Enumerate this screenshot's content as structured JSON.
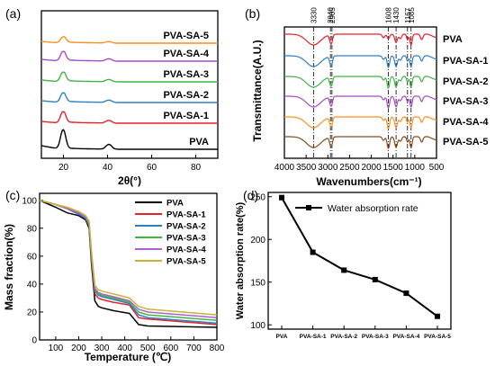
{
  "colors": {
    "PVA": "#000000",
    "PVA-SA-1": "#e8202a",
    "PVA-SA-2": "#2f7fc3",
    "PVA-SA-3": "#3fb545",
    "PVA-SA-4": "#a64bc6",
    "PVA-SA-5": "#ff8f1f",
    "ftir_PVA": "#e8202a",
    "ftir_PVA-SA-1": "#2f7fc3",
    "ftir_PVA-SA-2": "#3fb545",
    "ftir_PVA-SA-3": "#a64bc6",
    "ftir_PVA-SA-4": "#ff8f1f",
    "ftir_PVA-SA-5": "#8b4a1f",
    "tga_PVA-SA-4": "#b05fd0",
    "tga_PVA-SA-5": "#c8b332",
    "water": "#000000"
  },
  "chart_data": [
    {
      "panel": "(a)",
      "type": "line",
      "xlabel": "2θ(°)",
      "ylabel": "",
      "xlim": [
        10,
        90
      ],
      "x_ticks": [
        20,
        40,
        60,
        80
      ],
      "series": [
        {
          "name": "PVA",
          "peak_x": 19.8
        },
        {
          "name": "PVA-SA-1",
          "peak_x": 19.8
        },
        {
          "name": "PVA-SA-2",
          "peak_x": 19.8
        },
        {
          "name": "PVA-SA-3",
          "peak_x": 19.8
        },
        {
          "name": "PVA-SA-4",
          "peak_x": 19.8
        },
        {
          "name": "PVA-SA-5",
          "peak_x": 19.8
        }
      ]
    },
    {
      "panel": "(b)",
      "type": "line",
      "xlabel": "Wavenumbers(cm⁻¹)",
      "ylabel": "Transmittance(A.U.)",
      "xlim": [
        4000,
        500
      ],
      "x_ticks": [
        4000,
        3500,
        3000,
        2500,
        2000,
        1500,
        1000,
        500
      ],
      "peak_labels": [
        "3330",
        "2940",
        "2905",
        "1608",
        "1430",
        "1167",
        "1085"
      ],
      "peak_positions": [
        3330,
        2940,
        2905,
        1608,
        1430,
        1167,
        1085
      ],
      "series": [
        {
          "name": "PVA"
        },
        {
          "name": "PVA-SA-1"
        },
        {
          "name": "PVA-SA-2"
        },
        {
          "name": "PVA-SA-3"
        },
        {
          "name": "PVA-SA-4"
        },
        {
          "name": "PVA-SA-5"
        }
      ]
    },
    {
      "panel": "(c)",
      "type": "line",
      "xlabel": "Temperature (℃)",
      "ylabel": "Mass fraction(%)",
      "xlim": [
        30,
        800
      ],
      "ylim": [
        0,
        105
      ],
      "x_ticks": [
        100,
        200,
        300,
        400,
        500,
        600,
        700,
        800
      ],
      "y_ticks": [
        0,
        20,
        40,
        60,
        80,
        100
      ],
      "legend": "top-right",
      "series": [
        {
          "name": "PVA",
          "x": [
            30,
            100,
            150,
            200,
            230,
            245,
            255,
            270,
            285,
            300,
            350,
            420,
            460,
            500,
            800
          ],
          "y": [
            100,
            95,
            91,
            89,
            86,
            80,
            55,
            28,
            24,
            23,
            21,
            19,
            11,
            10,
            9
          ]
        },
        {
          "name": "PVA-SA-1",
          "x": [
            30,
            100,
            150,
            200,
            230,
            245,
            255,
            270,
            285,
            300,
            350,
            420,
            460,
            500,
            800
          ],
          "y": [
            100,
            97,
            94,
            90,
            87,
            82,
            58,
            33,
            30,
            29,
            27,
            25,
            16,
            15,
            11
          ]
        },
        {
          "name": "PVA-SA-2",
          "x": [
            30,
            100,
            150,
            200,
            230,
            245,
            255,
            270,
            285,
            300,
            350,
            420,
            460,
            500,
            800
          ],
          "y": [
            100,
            97,
            94,
            90,
            87,
            82,
            60,
            35,
            32,
            31,
            29,
            26,
            18,
            16,
            12
          ]
        },
        {
          "name": "PVA-SA-3",
          "x": [
            30,
            100,
            150,
            200,
            230,
            245,
            255,
            270,
            285,
            300,
            350,
            420,
            460,
            500,
            800
          ],
          "y": [
            100,
            97,
            94,
            91,
            88,
            83,
            61,
            36,
            33,
            32,
            30,
            27,
            20,
            18,
            14
          ]
        },
        {
          "name": "PVA-SA-4",
          "x": [
            30,
            100,
            150,
            200,
            230,
            245,
            255,
            270,
            285,
            300,
            350,
            420,
            460,
            500,
            800
          ],
          "y": [
            100,
            97,
            94,
            91,
            88,
            84,
            62,
            37,
            34,
            33,
            31,
            28,
            22,
            20,
            16
          ]
        },
        {
          "name": "PVA-SA-5",
          "x": [
            30,
            100,
            150,
            200,
            230,
            245,
            255,
            270,
            285,
            300,
            350,
            420,
            460,
            500,
            800
          ],
          "y": [
            100,
            97,
            95,
            92,
            89,
            85,
            64,
            39,
            36,
            35,
            33,
            30,
            24,
            22,
            18
          ]
        }
      ]
    },
    {
      "panel": "(d)",
      "type": "line",
      "xlabel": "",
      "ylabel": "Water absorption rate(%)",
      "ylim": [
        95,
        255
      ],
      "y_ticks": [
        100,
        150,
        200,
        250
      ],
      "categories": [
        "PVA",
        "PVA-SA-1",
        "PVA-SA-2",
        "PVA-SA-3",
        "PVA-SA-4",
        "PVA-SA-5"
      ],
      "legend": "top",
      "series": [
        {
          "name": "Water absorption rate",
          "values": [
            249,
            185,
            164,
            153,
            137,
            110
          ]
        }
      ]
    }
  ]
}
